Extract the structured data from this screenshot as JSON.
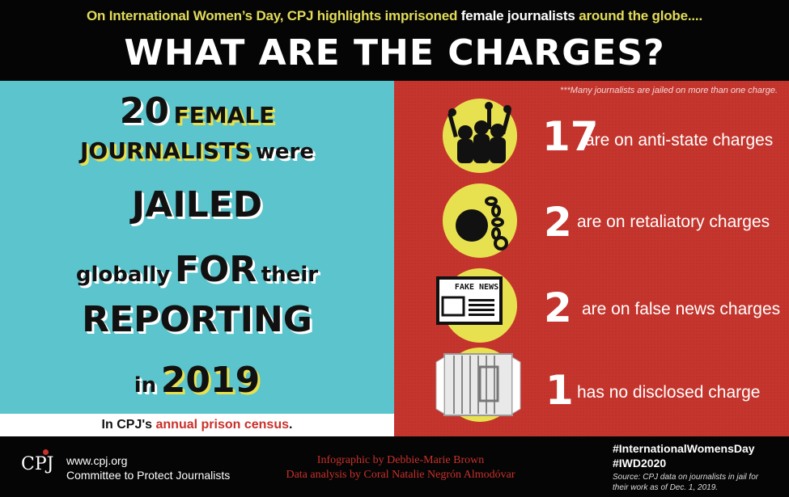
{
  "header": {
    "subtitle_part1": "On International Women’s Day, CPJ highlights imprisoned",
    "subtitle_highlight": "female journalists",
    "subtitle_part2": "around the globe....",
    "title": "WHAT ARE THE CHARGES?"
  },
  "left": {
    "num": "20",
    "female": "FEMALE",
    "journalists": "JOURNALISTS",
    "were": "were",
    "jailed": "JAILED",
    "globally": "globally",
    "for": "FOR",
    "their": "their",
    "reporting": "REPORTING",
    "in": "in",
    "year": "2019",
    "census_prefix": "In CPJ's",
    "census_link": "annual prison census",
    "census_suffix": "."
  },
  "right": {
    "note": "***Many journalists are jailed on more than one charge.",
    "stats": [
      {
        "num": "17",
        "text": "are on anti-state charges",
        "icon": "protest-crowd-icon"
      },
      {
        "num": "2",
        "text": "are on retaliatory charges",
        "icon": "ball-and-chain-icon"
      },
      {
        "num": "2",
        "text": "are on false news charges",
        "icon": "fake-news-newspaper-icon",
        "icon_label": "FAKE NEWS"
      },
      {
        "num": "1",
        "text": "has no disclosed charge",
        "icon": "jail-cell-icon"
      }
    ]
  },
  "footer": {
    "logo": "CPJ",
    "url": "www.cpj.org",
    "org": "Committee to Protect Journalists",
    "credit_infographic": "Infographic by Debbie-Marie Brown",
    "credit_data": "Data analysis by Coral Natalie Negrón Almodóvar",
    "hashtag1": "#InternationalWomensDay",
    "hashtag2": "#IWD2020",
    "source_line1": "Source: CPJ data on journalists in jail for",
    "source_line2": "their work as of Dec. 1, 2019."
  },
  "colors": {
    "teal": "#5bc4cc",
    "red": "#c5352d",
    "yellow": "#e8e14f",
    "black": "#050505"
  }
}
